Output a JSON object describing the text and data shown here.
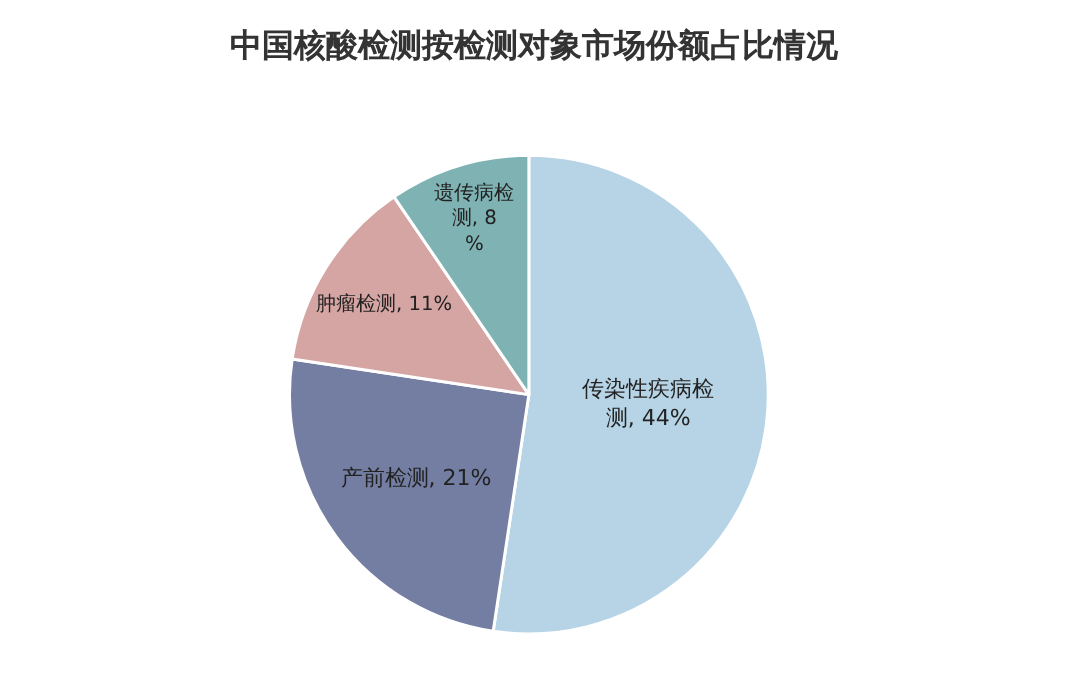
{
  "chart_data": {
    "type": "pie",
    "title": "中国核酸检测按检测对象市场份额占比情况",
    "categories": [
      "传染性疾病检测",
      "产前检测",
      "肿瘤检测",
      "遗传病检测"
    ],
    "values": [
      44,
      21,
      11,
      8
    ],
    "colors": [
      "#b6d4e5",
      "#737ea2",
      "#d5a5a3",
      "#7fb2b2"
    ],
    "value_labels": [
      "44%",
      "21%",
      "11%",
      "8%"
    ],
    "legend": false
  }
}
